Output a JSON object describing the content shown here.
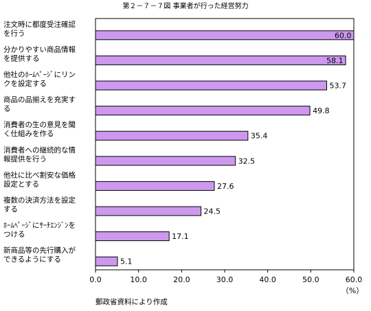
{
  "chart_data": {
    "type": "bar",
    "orientation": "horizontal",
    "title": "第２－７－７図 事業者が行った経営努力",
    "categories": [
      [
        "注文時に都度受注確認",
        "を行う"
      ],
      [
        "分かりやすい商品情報",
        "を提供する"
      ],
      [
        "他社のﾎｰﾑﾍﾟｰｼﾞにリン",
        "クを設定する"
      ],
      [
        "商品の品揃えを充実す",
        "る"
      ],
      [
        "消費者の生の意見を聞",
        "く仕組みを作る"
      ],
      [
        "消費者への継続的な情",
        "報提供を行う"
      ],
      [
        "他社に比べ割安な価格",
        "設定とする"
      ],
      [
        "複数の決済方法を設定",
        "する"
      ],
      [
        "ﾎｰﾑﾍﾟｰｼﾞにｻｰﾁｴﾝｼﾞﾝを",
        "つける"
      ],
      [
        "新商品等の先行購入が",
        "できるようにする"
      ]
    ],
    "values": [
      60.0,
      58.1,
      53.7,
      49.8,
      35.4,
      32.5,
      27.6,
      24.5,
      17.1,
      5.1
    ],
    "value_labels": [
      "60.0",
      "58.1",
      "53.7",
      "49.8",
      "35.4",
      "32.5",
      "27.6",
      "24.5",
      "17.1",
      "5.1"
    ],
    "xlim": [
      0,
      60
    ],
    "xticks": [
      0,
      10,
      20,
      30,
      40,
      50,
      60
    ],
    "xtick_labels": [
      "0.0",
      "10.0",
      "20.0",
      "30.0",
      "40.0",
      "50.0",
      "60.0"
    ],
    "unit_label": "（%）",
    "bar_color": "#cc99ee",
    "grid": false,
    "legend": "none"
  },
  "source_note": "郵政省資料により作成"
}
